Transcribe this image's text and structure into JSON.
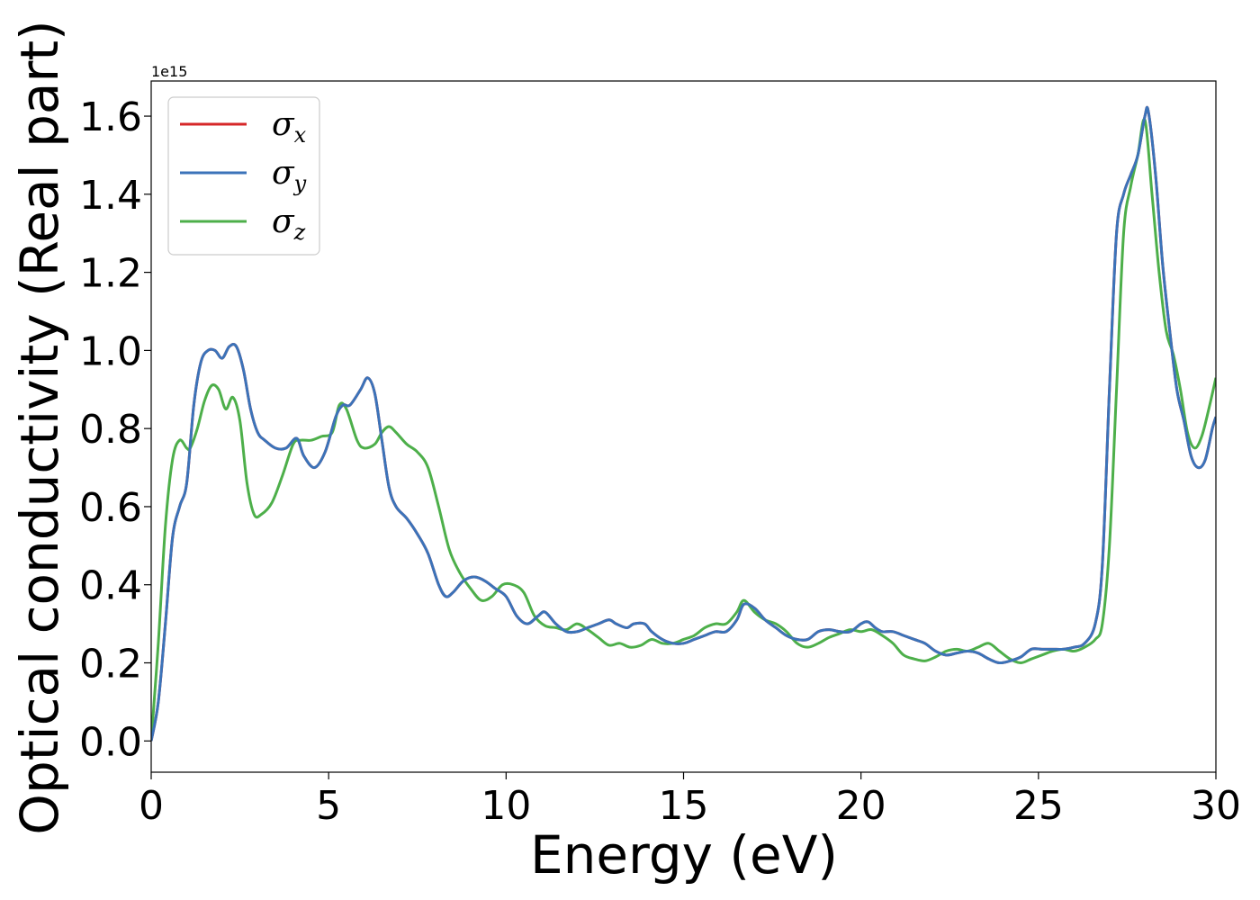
{
  "chart_data": {
    "type": "line",
    "title": "",
    "xlabel": "Energy (eV)",
    "ylabel": "Optical conductivity (Real part)",
    "y_offset_text": "1e15",
    "xlim": [
      0,
      30
    ],
    "ylim": [
      -0.08,
      1.69
    ],
    "y_multiplier": 1000000000000000.0,
    "x_ticks": [
      0,
      5,
      10,
      15,
      20,
      25,
      30
    ],
    "x_tick_labels": [
      "0",
      "5",
      "10",
      "15",
      "20",
      "25",
      "30"
    ],
    "y_ticks": [
      0.0,
      0.2,
      0.4,
      0.6,
      0.8,
      1.0,
      1.2,
      1.4,
      1.6
    ],
    "y_tick_labels": [
      "0.0",
      "0.2",
      "0.4",
      "0.6",
      "0.8",
      "1.0",
      "1.2",
      "1.4",
      "1.6"
    ],
    "grid": false,
    "legend_position": "top-left",
    "series": [
      {
        "name": "σx",
        "legend_symbol": "σ",
        "legend_subscript": "x",
        "color": "#d62728",
        "x": [
          0,
          0.2,
          0.4,
          0.6,
          0.8,
          1.0,
          1.2,
          1.4,
          1.6,
          1.8,
          2.0,
          2.2,
          2.4,
          2.6,
          2.8,
          3.0,
          3.2,
          3.5,
          3.8,
          4.1,
          4.3,
          4.6,
          4.9,
          5.2,
          5.4,
          5.6,
          5.9,
          6.1,
          6.3,
          6.5,
          6.7,
          6.9,
          7.2,
          7.5,
          7.8,
          8.1,
          8.3,
          8.5,
          8.8,
          9.1,
          9.4,
          9.7,
          10.0,
          10.3,
          10.6,
          10.9,
          11.1,
          11.4,
          11.7,
          12.0,
          12.3,
          12.6,
          12.9,
          13.1,
          13.4,
          13.6,
          13.9,
          14.1,
          14.4,
          14.7,
          15.0,
          15.3,
          15.6,
          15.9,
          16.2,
          16.5,
          16.7,
          17.0,
          17.3,
          17.6,
          17.9,
          18.2,
          18.5,
          18.8,
          19.1,
          19.4,
          19.7,
          20.0,
          20.2,
          20.4,
          20.6,
          20.9,
          21.2,
          21.5,
          21.8,
          22.1,
          22.4,
          22.7,
          23.0,
          23.3,
          23.6,
          23.9,
          24.2,
          24.5,
          24.8,
          25.1,
          25.4,
          25.7,
          26.0,
          26.3,
          26.6,
          26.8,
          27.0,
          27.2,
          27.4,
          27.6,
          27.8,
          28.0,
          28.1,
          28.3,
          28.5,
          28.7,
          28.9,
          29.1,
          29.3,
          29.5,
          29.7,
          29.9,
          30.0
        ],
        "values": [
          0.0,
          0.1,
          0.3,
          0.52,
          0.6,
          0.66,
          0.86,
          0.97,
          1.0,
          1.0,
          0.98,
          1.01,
          1.01,
          0.95,
          0.85,
          0.79,
          0.77,
          0.75,
          0.75,
          0.775,
          0.73,
          0.7,
          0.74,
          0.83,
          0.86,
          0.86,
          0.9,
          0.93,
          0.89,
          0.77,
          0.65,
          0.6,
          0.57,
          0.53,
          0.48,
          0.4,
          0.37,
          0.38,
          0.41,
          0.42,
          0.41,
          0.39,
          0.37,
          0.32,
          0.3,
          0.32,
          0.33,
          0.3,
          0.28,
          0.28,
          0.29,
          0.3,
          0.31,
          0.3,
          0.29,
          0.3,
          0.3,
          0.28,
          0.26,
          0.25,
          0.25,
          0.26,
          0.27,
          0.28,
          0.28,
          0.31,
          0.35,
          0.34,
          0.31,
          0.29,
          0.27,
          0.26,
          0.26,
          0.28,
          0.285,
          0.28,
          0.28,
          0.3,
          0.305,
          0.29,
          0.28,
          0.28,
          0.27,
          0.26,
          0.25,
          0.23,
          0.22,
          0.225,
          0.23,
          0.225,
          0.21,
          0.2,
          0.205,
          0.215,
          0.235,
          0.235,
          0.235,
          0.235,
          0.24,
          0.25,
          0.3,
          0.45,
          0.9,
          1.3,
          1.4,
          1.45,
          1.5,
          1.6,
          1.61,
          1.45,
          1.22,
          1.05,
          0.9,
          0.82,
          0.73,
          0.7,
          0.72,
          0.8,
          0.83
        ]
      },
      {
        "name": "σy",
        "legend_symbol": "σ",
        "legend_subscript": "y",
        "color": "#3b73b9",
        "x": [
          0,
          0.2,
          0.4,
          0.6,
          0.8,
          1.0,
          1.2,
          1.4,
          1.6,
          1.8,
          2.0,
          2.2,
          2.4,
          2.6,
          2.8,
          3.0,
          3.2,
          3.5,
          3.8,
          4.1,
          4.3,
          4.6,
          4.9,
          5.2,
          5.4,
          5.6,
          5.9,
          6.1,
          6.3,
          6.5,
          6.7,
          6.9,
          7.2,
          7.5,
          7.8,
          8.1,
          8.3,
          8.5,
          8.8,
          9.1,
          9.4,
          9.7,
          10.0,
          10.3,
          10.6,
          10.9,
          11.1,
          11.4,
          11.7,
          12.0,
          12.3,
          12.6,
          12.9,
          13.1,
          13.4,
          13.6,
          13.9,
          14.1,
          14.4,
          14.7,
          15.0,
          15.3,
          15.6,
          15.9,
          16.2,
          16.5,
          16.7,
          17.0,
          17.3,
          17.6,
          17.9,
          18.2,
          18.5,
          18.8,
          19.1,
          19.4,
          19.7,
          20.0,
          20.2,
          20.4,
          20.6,
          20.9,
          21.2,
          21.5,
          21.8,
          22.1,
          22.4,
          22.7,
          23.0,
          23.3,
          23.6,
          23.9,
          24.2,
          24.5,
          24.8,
          25.1,
          25.4,
          25.7,
          26.0,
          26.3,
          26.6,
          26.8,
          27.0,
          27.2,
          27.4,
          27.6,
          27.8,
          28.0,
          28.1,
          28.3,
          28.5,
          28.7,
          28.9,
          29.1,
          29.3,
          29.5,
          29.7,
          29.9,
          30.0
        ],
        "values": [
          0.0,
          0.1,
          0.3,
          0.52,
          0.6,
          0.66,
          0.86,
          0.97,
          1.0,
          1.0,
          0.98,
          1.01,
          1.01,
          0.95,
          0.85,
          0.79,
          0.77,
          0.75,
          0.75,
          0.775,
          0.73,
          0.7,
          0.74,
          0.83,
          0.86,
          0.86,
          0.9,
          0.93,
          0.89,
          0.77,
          0.65,
          0.6,
          0.57,
          0.53,
          0.48,
          0.4,
          0.37,
          0.38,
          0.41,
          0.42,
          0.41,
          0.39,
          0.37,
          0.32,
          0.3,
          0.32,
          0.33,
          0.3,
          0.28,
          0.28,
          0.29,
          0.3,
          0.31,
          0.3,
          0.29,
          0.3,
          0.3,
          0.28,
          0.26,
          0.25,
          0.25,
          0.26,
          0.27,
          0.28,
          0.28,
          0.31,
          0.35,
          0.34,
          0.31,
          0.29,
          0.27,
          0.26,
          0.26,
          0.28,
          0.285,
          0.28,
          0.28,
          0.3,
          0.305,
          0.29,
          0.28,
          0.28,
          0.27,
          0.26,
          0.25,
          0.23,
          0.22,
          0.225,
          0.23,
          0.225,
          0.21,
          0.2,
          0.205,
          0.215,
          0.235,
          0.235,
          0.235,
          0.235,
          0.24,
          0.25,
          0.3,
          0.45,
          0.9,
          1.3,
          1.4,
          1.45,
          1.5,
          1.6,
          1.61,
          1.45,
          1.22,
          1.05,
          0.9,
          0.82,
          0.73,
          0.7,
          0.72,
          0.8,
          0.83
        ]
      },
      {
        "name": "σz",
        "legend_symbol": "σ",
        "legend_subscript": "z",
        "color": "#4daf4a",
        "x": [
          0,
          0.2,
          0.4,
          0.6,
          0.8,
          1.0,
          1.1,
          1.3,
          1.5,
          1.7,
          1.9,
          2.1,
          2.3,
          2.5,
          2.7,
          2.9,
          3.1,
          3.4,
          3.7,
          4.0,
          4.2,
          4.5,
          4.8,
          5.1,
          5.3,
          5.5,
          5.8,
          6.0,
          6.3,
          6.5,
          6.7,
          6.9,
          7.2,
          7.5,
          7.8,
          8.1,
          8.4,
          8.7,
          9.0,
          9.3,
          9.6,
          9.9,
          10.2,
          10.5,
          10.8,
          11.1,
          11.4,
          11.7,
          12.0,
          12.3,
          12.6,
          12.9,
          13.2,
          13.5,
          13.8,
          14.1,
          14.4,
          14.7,
          15.0,
          15.3,
          15.6,
          15.9,
          16.2,
          16.5,
          16.7,
          17.0,
          17.3,
          17.6,
          17.9,
          18.2,
          18.5,
          18.8,
          19.1,
          19.4,
          19.7,
          20.0,
          20.3,
          20.6,
          20.9,
          21.2,
          21.5,
          21.8,
          22.1,
          22.4,
          22.7,
          23.0,
          23.3,
          23.6,
          23.9,
          24.2,
          24.5,
          24.8,
          25.1,
          25.4,
          25.7,
          26.0,
          26.3,
          26.6,
          26.8,
          27.0,
          27.2,
          27.4,
          27.6,
          27.8,
          28.0,
          28.2,
          28.4,
          28.6,
          28.8,
          29.0,
          29.2,
          29.4,
          29.6,
          29.8,
          30.0
        ],
        "values": [
          0.0,
          0.25,
          0.55,
          0.72,
          0.77,
          0.75,
          0.75,
          0.8,
          0.87,
          0.91,
          0.9,
          0.85,
          0.88,
          0.82,
          0.66,
          0.58,
          0.58,
          0.61,
          0.68,
          0.76,
          0.77,
          0.77,
          0.78,
          0.79,
          0.86,
          0.85,
          0.77,
          0.75,
          0.76,
          0.79,
          0.805,
          0.79,
          0.76,
          0.74,
          0.7,
          0.6,
          0.49,
          0.43,
          0.39,
          0.36,
          0.37,
          0.4,
          0.4,
          0.38,
          0.32,
          0.295,
          0.29,
          0.285,
          0.3,
          0.285,
          0.265,
          0.245,
          0.25,
          0.24,
          0.245,
          0.26,
          0.25,
          0.25,
          0.26,
          0.27,
          0.29,
          0.3,
          0.3,
          0.33,
          0.36,
          0.33,
          0.31,
          0.3,
          0.28,
          0.25,
          0.24,
          0.25,
          0.265,
          0.275,
          0.285,
          0.28,
          0.285,
          0.27,
          0.25,
          0.22,
          0.21,
          0.205,
          0.215,
          0.23,
          0.235,
          0.23,
          0.24,
          0.25,
          0.23,
          0.21,
          0.2,
          0.21,
          0.22,
          0.23,
          0.235,
          0.23,
          0.24,
          0.26,
          0.3,
          0.5,
          0.9,
          1.3,
          1.42,
          1.5,
          1.59,
          1.4,
          1.2,
          1.05,
          0.99,
          0.9,
          0.79,
          0.75,
          0.78,
          0.85,
          0.93
        ]
      }
    ]
  }
}
